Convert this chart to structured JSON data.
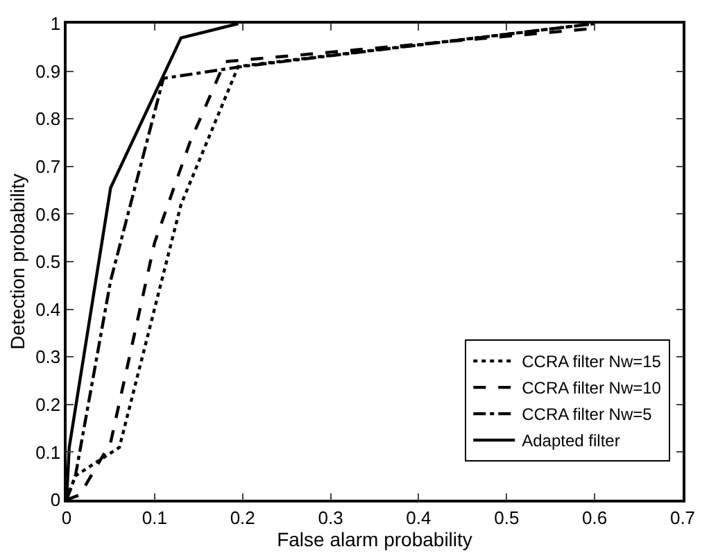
{
  "chart_data": {
    "type": "line",
    "xlabel": "False alarm probability",
    "ylabel": "Detection probability",
    "xlim": [
      0,
      0.7
    ],
    "xticks": [
      0,
      0.1,
      0.2,
      0.3,
      0.4,
      0.5,
      0.6,
      0.7
    ],
    "ylim": [
      0,
      1
    ],
    "yticks": [
      0,
      0.1,
      0.2,
      0.3,
      0.4,
      0.5,
      0.6,
      0.7,
      0.8,
      0.9,
      1
    ],
    "legend": "bottom right",
    "series": [
      {
        "name": "CCRA filter Nw=15",
        "color": "#000000",
        "line_style": "dotted",
        "x": [
          0,
          0.01,
          0.06,
          0.13,
          0.195,
          0.6
        ],
        "values": [
          0,
          0.05,
          0.11,
          0.62,
          0.91,
          1.0
        ]
      },
      {
        "name": "CCRA filter Nw=10",
        "color": "#000000",
        "line_style": "dashed",
        "x": [
          0,
          0.015,
          0.05,
          0.1,
          0.14,
          0.18,
          0.6
        ],
        "values": [
          0,
          0.01,
          0.12,
          0.54,
          0.75,
          0.92,
          0.99
        ]
      },
      {
        "name": "CCRA filter Nw=5",
        "color": "#000000",
        "line_style": "dashdot",
        "x": [
          0,
          0.01,
          0.05,
          0.11,
          0.2,
          0.6
        ],
        "values": [
          0,
          0.05,
          0.46,
          0.885,
          0.91,
          1.0
        ]
      },
      {
        "name": "Adapted filter",
        "color": "#000000",
        "line_style": "solid",
        "x": [
          0,
          0.003,
          0.05,
          0.13,
          0.195
        ],
        "values": [
          0,
          0.11,
          0.655,
          0.97,
          1.0
        ]
      }
    ]
  }
}
